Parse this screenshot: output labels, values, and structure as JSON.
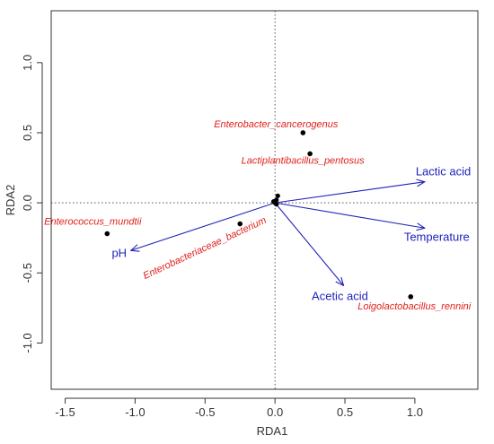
{
  "chart_data": {
    "type": "scatter",
    "xlabel": "RDA1",
    "ylabel": "RDA2",
    "xlim": [
      -1.6,
      1.45
    ],
    "ylim": [
      -1.33,
      1.37
    ],
    "x_ticks": [
      -1.5,
      -1.0,
      -0.5,
      0.0,
      0.5,
      1.0
    ],
    "x_tick_labels": [
      "-1.5",
      "-1.0",
      "-0.5",
      "0.0",
      "0.5",
      "1.0"
    ],
    "y_ticks": [
      -1.0,
      -0.5,
      0.0,
      0.5,
      1.0
    ],
    "y_tick_labels": [
      "-1.0",
      "-0.5",
      "0.0",
      "0.5",
      "1.0"
    ],
    "reference_lines": {
      "x": 0,
      "y": 0,
      "style": "dotted"
    },
    "colors": {
      "species": "#e0201b",
      "environment": "#2222bb",
      "points": "#000000",
      "axes": "#333333"
    },
    "species": [
      {
        "name": "Enterobacter_cancerogenus",
        "x": 0.2,
        "y": 0.5
      },
      {
        "name": "Lactiplantibacillus_pentosus",
        "x": 0.25,
        "y": 0.35
      },
      {
        "name": "Enterococcus_mundtii",
        "x": -1.2,
        "y": -0.22
      },
      {
        "name": "Enterobacteriaceae_bacterium",
        "x": -0.25,
        "y": -0.15
      },
      {
        "name": "Loigolactobacillus_rennini",
        "x": 0.97,
        "y": -0.67
      }
    ],
    "extra_points": [
      {
        "x": 0.0,
        "y": 0.0
      },
      {
        "x": 0.01,
        "y": 0.02
      },
      {
        "x": 0.02,
        "y": 0.05
      },
      {
        "x": -0.01,
        "y": 0.01
      },
      {
        "x": 0.01,
        "y": -0.01
      }
    ],
    "environmental_vectors": [
      {
        "name": "Lactic acid",
        "x": 1.07,
        "y": 0.15
      },
      {
        "name": "Temperature",
        "x": 1.07,
        "y": -0.18
      },
      {
        "name": "Acetic acid",
        "x": 0.49,
        "y": -0.59
      },
      {
        "name": "pH",
        "x": -1.03,
        "y": -0.34
      }
    ]
  }
}
